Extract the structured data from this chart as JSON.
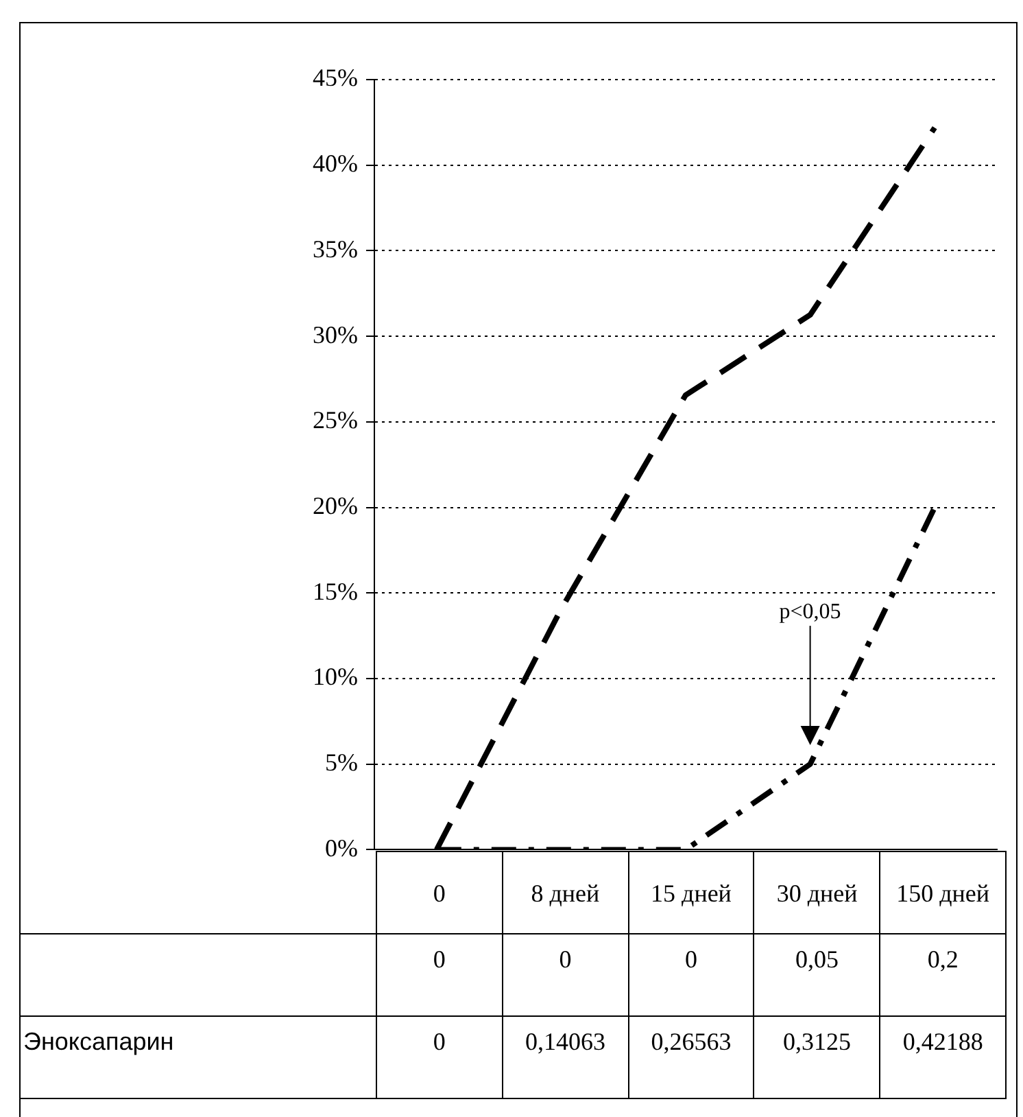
{
  "chart_data": {
    "type": "line",
    "categories": [
      "0",
      "8 дней",
      "15 дней",
      "30 дней",
      "150 дней"
    ],
    "series": [
      {
        "color": "#000000",
        "line_style": "dotted",
        "values": [
          0,
          0,
          0,
          0.05,
          0.2
        ],
        "value_labels": [
          "0",
          "0",
          "0",
          "0,05",
          "0,2"
        ]
      },
      {
        "name": "Эноксапарин",
        "color": "#000000",
        "line_style": "dashed",
        "values": [
          0,
          0.14063,
          0.26563,
          0.3125,
          0.42188
        ],
        "value_labels": [
          "0",
          "0,14063",
          "0,26563",
          "0,3125",
          "0,42188"
        ]
      }
    ],
    "ylim": [
      0,
      0.45
    ],
    "yticks": [
      {
        "value": 0,
        "label": "0%"
      },
      {
        "value": 0.05,
        "label": "5%"
      },
      {
        "value": 0.1,
        "label": "10%"
      },
      {
        "value": 0.15,
        "label": "15%"
      },
      {
        "value": 0.2,
        "label": "20%"
      },
      {
        "value": 0.25,
        "label": "25%"
      },
      {
        "value": 0.3,
        "label": "30%"
      },
      {
        "value": 0.35,
        "label": "35%"
      },
      {
        "value": 0.4,
        "label": "40%"
      },
      {
        "value": 0.45,
        "label": "45%"
      }
    ],
    "grid": "y",
    "marker": "none",
    "legend": false,
    "annotations": [
      "p<0,05"
    ]
  }
}
